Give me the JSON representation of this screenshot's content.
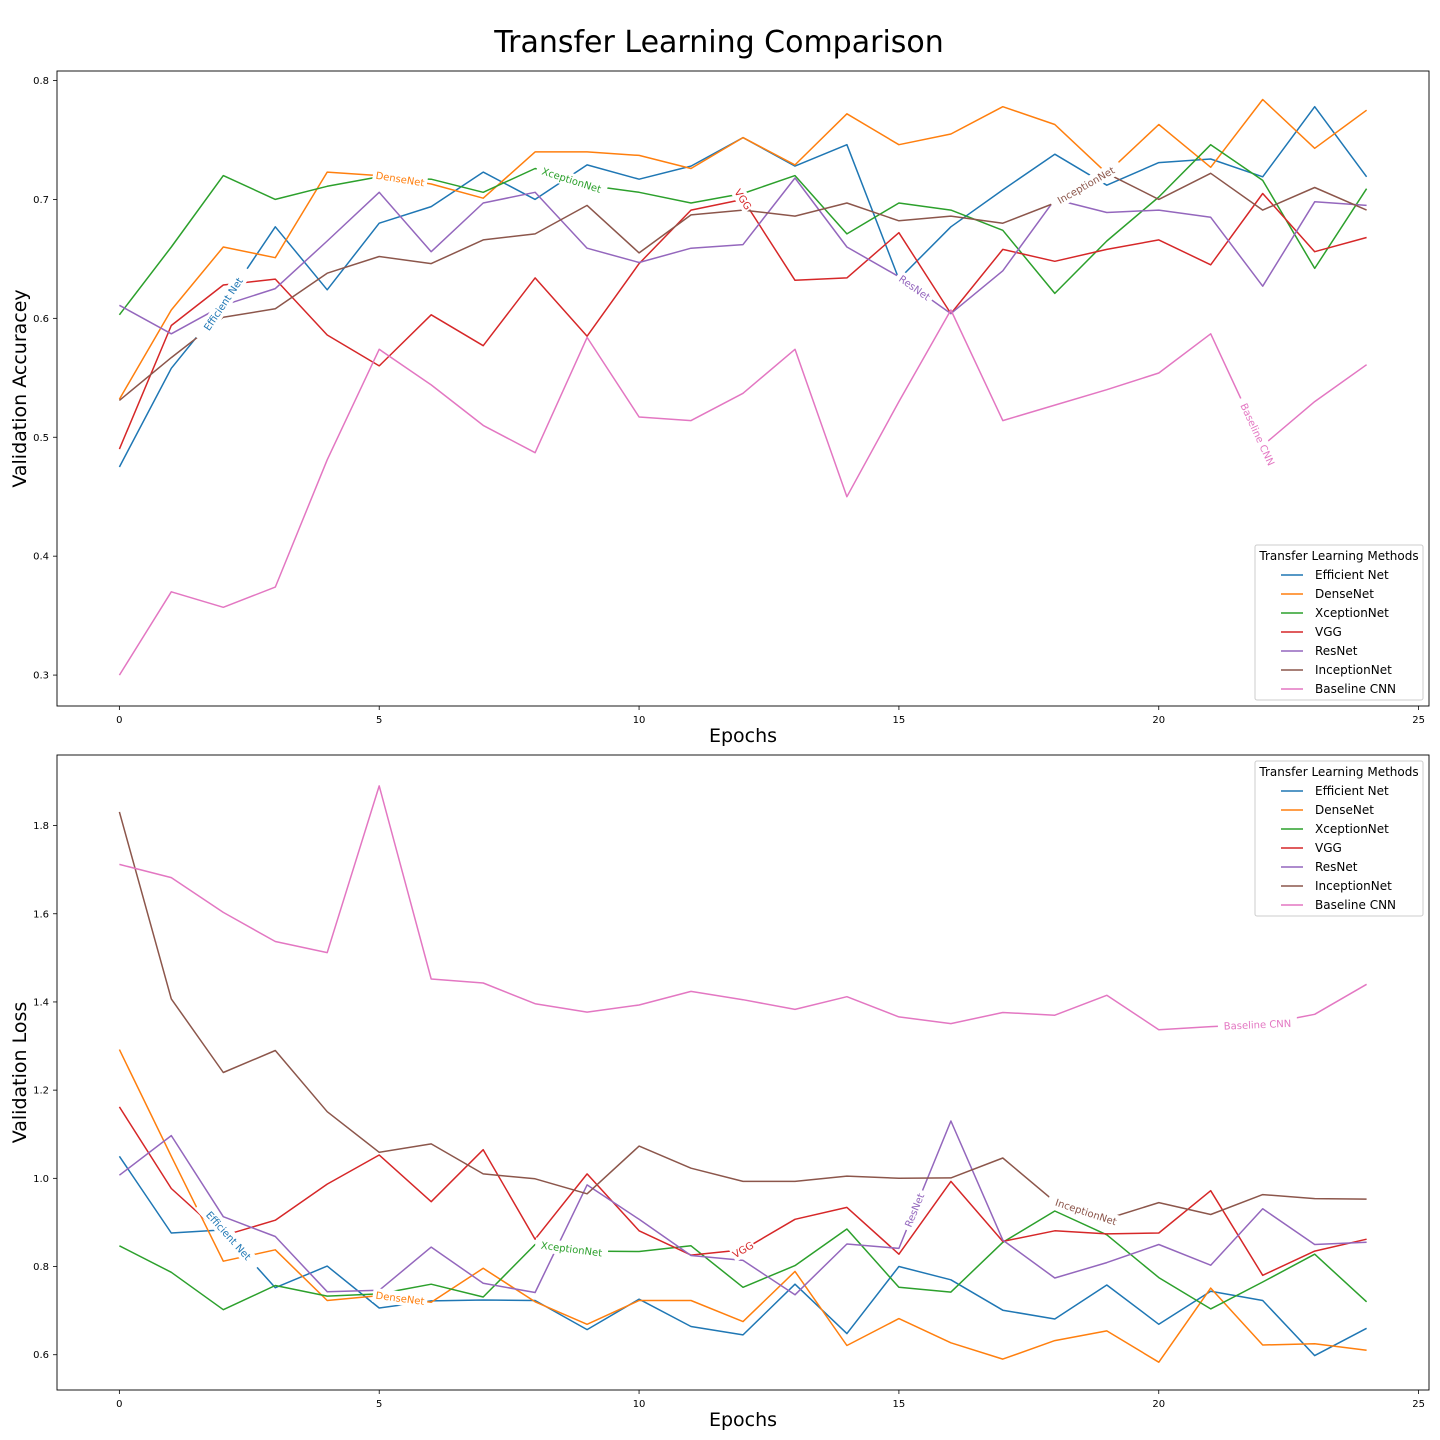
{
  "figure_title": "Transfer Learning Comparison",
  "chart_data": [
    {
      "type": "line",
      "xlabel": "Epochs",
      "ylabel": "Validation Accuracey",
      "xlim": [
        -1.2,
        25.2
      ],
      "ylim": [
        0.274,
        0.808
      ],
      "xticks": [
        0,
        5,
        10,
        15,
        20,
        25
      ],
      "yticks": [
        0.3,
        0.4,
        0.5,
        0.6,
        0.7,
        0.8
      ],
      "grid": false,
      "legend_title": "Transfer Learning Methods",
      "legend_position": "bottom-right",
      "x": [
        0,
        1,
        2,
        3,
        4,
        5,
        6,
        7,
        8,
        9,
        10,
        11,
        12,
        13,
        14,
        15,
        16,
        17,
        18,
        19,
        20,
        21,
        22,
        23,
        24
      ],
      "series": [
        {
          "name": "Efficient Net",
          "color": "#1f77b4",
          "inline_label_x": 2.0,
          "values": [
            0.475,
            0.558,
            0.612,
            0.677,
            0.624,
            0.68,
            0.694,
            0.723,
            0.7,
            0.729,
            0.717,
            0.728,
            0.752,
            0.728,
            0.746,
            0.633,
            0.677,
            0.708,
            0.738,
            0.712,
            0.731,
            0.734,
            0.719,
            0.778,
            0.719
          ]
        },
        {
          "name": "DenseNet",
          "color": "#ff7f0e",
          "inline_label_x": 5.4,
          "values": [
            0.532,
            0.607,
            0.66,
            0.651,
            0.723,
            0.72,
            0.713,
            0.701,
            0.74,
            0.74,
            0.737,
            0.726,
            0.752,
            0.729,
            0.772,
            0.746,
            0.755,
            0.778,
            0.763,
            0.722,
            0.763,
            0.727,
            0.784,
            0.743,
            0.775
          ]
        },
        {
          "name": "XceptionNet",
          "color": "#2ca02c",
          "inline_label_x": 8.7,
          "values": [
            0.603,
            0.66,
            0.72,
            0.7,
            0.711,
            0.719,
            0.717,
            0.706,
            0.726,
            0.712,
            0.706,
            0.697,
            0.705,
            0.72,
            0.671,
            0.697,
            0.691,
            0.674,
            0.621,
            0.665,
            0.702,
            0.746,
            0.716,
            0.642,
            0.709
          ]
        },
        {
          "name": "VGG",
          "color": "#d62728",
          "inline_label_x": 12.0,
          "values": [
            0.49,
            0.594,
            0.628,
            0.633,
            0.586,
            0.56,
            0.603,
            0.577,
            0.634,
            0.585,
            0.646,
            0.691,
            0.7,
            0.632,
            0.634,
            0.672,
            0.604,
            0.658,
            0.648,
            0.658,
            0.666,
            0.645,
            0.705,
            0.656,
            0.668
          ]
        },
        {
          "name": "ResNet",
          "color": "#9467bd",
          "inline_label_x": 15.3,
          "values": [
            0.611,
            0.587,
            0.611,
            0.625,
            0.665,
            0.706,
            0.656,
            0.697,
            0.706,
            0.659,
            0.647,
            0.659,
            0.662,
            0.718,
            0.66,
            0.635,
            0.604,
            0.64,
            0.7,
            0.689,
            0.691,
            0.685,
            0.627,
            0.698,
            0.695
          ]
        },
        {
          "name": "InceptionNet",
          "color": "#8c564b",
          "inline_label_x": 18.6,
          "values": [
            0.531,
            0.567,
            0.601,
            0.608,
            0.638,
            0.652,
            0.646,
            0.666,
            0.671,
            0.695,
            0.655,
            0.687,
            0.691,
            0.686,
            0.697,
            0.682,
            0.686,
            0.68,
            0.697,
            0.722,
            0.7,
            0.722,
            0.691,
            0.71,
            0.691
          ]
        },
        {
          "name": "Baseline CNN",
          "color": "#e377c2",
          "inline_label_x": 21.9,
          "values": [
            0.3,
            0.37,
            0.357,
            0.374,
            0.481,
            0.574,
            0.544,
            0.51,
            0.487,
            0.584,
            0.517,
            0.514,
            0.537,
            0.574,
            0.45,
            0.53,
            0.607,
            0.514,
            0.527,
            0.54,
            0.554,
            0.587,
            0.493,
            0.53,
            0.561
          ]
        }
      ]
    },
    {
      "type": "line",
      "xlabel": "Epochs",
      "ylabel": "Validation Loss",
      "xlim": [
        -1.2,
        25.2
      ],
      "ylim": [
        0.52,
        1.96
      ],
      "xticks": [
        0,
        5,
        10,
        15,
        20,
        25
      ],
      "yticks": [
        0.6,
        0.8,
        1.0,
        1.2,
        1.4,
        1.6,
        1.8
      ],
      "grid": false,
      "legend_title": "Transfer Learning Methods",
      "legend_position": "top-right",
      "x": [
        0,
        1,
        2,
        3,
        4,
        5,
        6,
        7,
        8,
        9,
        10,
        11,
        12,
        13,
        14,
        15,
        16,
        17,
        18,
        19,
        20,
        21,
        22,
        23,
        24
      ],
      "series": [
        {
          "name": "Efficient Net",
          "color": "#1f77b4",
          "inline_label_x": 2.1,
          "values": [
            1.05,
            0.876,
            0.883,
            0.752,
            0.801,
            0.706,
            0.722,
            0.724,
            0.723,
            0.657,
            0.726,
            0.664,
            0.645,
            0.76,
            0.648,
            0.8,
            0.77,
            0.701,
            0.681,
            0.758,
            0.669,
            0.744,
            0.723,
            0.598,
            0.66
          ]
        },
        {
          "name": "DenseNet",
          "color": "#ff7f0e",
          "inline_label_x": 5.4,
          "values": [
            1.292,
            1.05,
            0.812,
            0.838,
            0.723,
            0.734,
            0.719,
            0.796,
            0.72,
            0.669,
            0.723,
            0.723,
            0.675,
            0.789,
            0.621,
            0.682,
            0.627,
            0.59,
            0.632,
            0.654,
            0.583,
            0.751,
            0.622,
            0.625,
            0.61
          ]
        },
        {
          "name": "XceptionNet",
          "color": "#2ca02c",
          "inline_label_x": 8.7,
          "values": [
            0.847,
            0.787,
            0.702,
            0.757,
            0.733,
            0.738,
            0.76,
            0.731,
            0.85,
            0.835,
            0.834,
            0.847,
            0.753,
            0.802,
            0.885,
            0.753,
            0.742,
            0.855,
            0.926,
            0.872,
            0.775,
            0.704,
            0.765,
            0.828,
            0.72
          ]
        },
        {
          "name": "VGG",
          "color": "#d62728",
          "inline_label_x": 12.0,
          "values": [
            1.162,
            0.977,
            0.87,
            0.905,
            0.987,
            1.053,
            0.947,
            1.065,
            0.862,
            1.01,
            0.881,
            0.826,
            0.838,
            0.907,
            0.934,
            0.828,
            0.993,
            0.857,
            0.881,
            0.874,
            0.876,
            0.972,
            0.78,
            0.835,
            0.862
          ]
        },
        {
          "name": "ResNet",
          "color": "#9467bd",
          "inline_label_x": 15.3,
          "values": [
            1.007,
            1.097,
            0.913,
            0.868,
            0.743,
            0.746,
            0.844,
            0.762,
            0.741,
            0.985,
            0.907,
            0.825,
            0.814,
            0.736,
            0.851,
            0.841,
            1.13,
            0.86,
            0.774,
            0.809,
            0.85,
            0.803,
            0.931,
            0.85,
            0.855
          ]
        },
        {
          "name": "InceptionNet",
          "color": "#8c564b",
          "inline_label_x": 18.6,
          "values": [
            1.831,
            1.407,
            1.24,
            1.29,
            1.151,
            1.059,
            1.078,
            1.01,
            0.999,
            0.965,
            1.073,
            1.023,
            0.993,
            0.993,
            1.005,
            1.0,
            1.001,
            1.046,
            0.947,
            0.908,
            0.945,
            0.918,
            0.963,
            0.954,
            0.953
          ]
        },
        {
          "name": "Baseline CNN",
          "color": "#e377c2",
          "inline_label_x": 21.9,
          "values": [
            1.712,
            1.682,
            1.603,
            1.537,
            1.512,
            1.89,
            1.452,
            1.443,
            1.396,
            1.377,
            1.393,
            1.424,
            1.405,
            1.383,
            1.412,
            1.366,
            1.351,
            1.376,
            1.37,
            1.415,
            1.337,
            1.344,
            1.349,
            1.372,
            1.44
          ]
        }
      ]
    }
  ]
}
